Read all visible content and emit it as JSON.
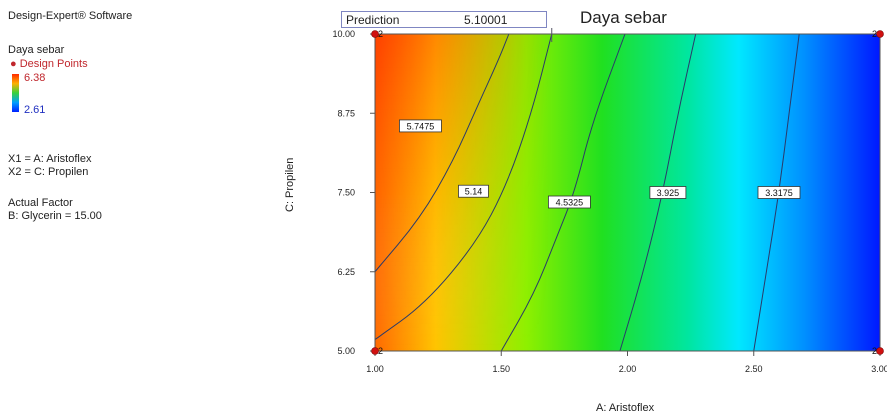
{
  "header": {
    "software": "Design-Expert® Software"
  },
  "response": {
    "name": "Daya sebar",
    "design_points_label": "Design Points",
    "high": "6.38",
    "low": "2.61"
  },
  "factors": {
    "x1": "X1 = A: Aristoflex",
    "x2": "X2 = C: Propilen"
  },
  "actual_factor": {
    "heading": "Actual Factor",
    "value": "B: Glycerin = 15.00"
  },
  "prediction": {
    "label": "Prediction",
    "value": "5.10001"
  },
  "colors": {
    "high": "#ff2a00",
    "mid": "#38d23c",
    "low": "#0020ff",
    "contour": "#2a3a6a"
  },
  "chart_data": {
    "type": "contour",
    "title": "Daya sebar",
    "xlabel": "A: Aristoflex",
    "ylabel": "C: Propilen",
    "xlim": [
      1.0,
      3.0
    ],
    "ylim": [
      5.0,
      10.0
    ],
    "x_ticks": [
      "1.00",
      "1.50",
      "2.00",
      "2.50",
      "3.00"
    ],
    "y_ticks": [
      "5.00",
      "6.25",
      "7.50",
      "8.75",
      "10.00"
    ],
    "color_range": [
      2.61,
      6.38
    ],
    "contours": [
      {
        "label": "5.7475",
        "points": [
          [
            1.0,
            6.25
          ],
          [
            1.18,
            7.1
          ],
          [
            1.31,
            8.0
          ],
          [
            1.41,
            8.9
          ],
          [
            1.49,
            9.6
          ],
          [
            1.53,
            10.0
          ]
        ]
      },
      {
        "label": "5.14",
        "points": [
          [
            1.0,
            5.18
          ],
          [
            1.2,
            5.75
          ],
          [
            1.4,
            6.7
          ],
          [
            1.52,
            7.6
          ],
          [
            1.62,
            8.75
          ],
          [
            1.7,
            10.0
          ]
        ]
      },
      {
        "label": "4.5325",
        "points": [
          [
            1.5,
            5.0
          ],
          [
            1.63,
            5.9
          ],
          [
            1.72,
            6.8
          ],
          [
            1.79,
            7.5
          ],
          [
            1.86,
            8.6
          ],
          [
            1.99,
            10.0
          ]
        ]
      },
      {
        "label": "3.925",
        "points": [
          [
            1.97,
            5.0
          ],
          [
            2.06,
            6.2
          ],
          [
            2.14,
            7.5
          ],
          [
            2.2,
            8.75
          ],
          [
            2.27,
            10.0
          ]
        ]
      },
      {
        "label": "3.3175",
        "points": [
          [
            2.5,
            5.0
          ],
          [
            2.55,
            6.25
          ],
          [
            2.6,
            7.5
          ],
          [
            2.64,
            8.75
          ],
          [
            2.68,
            10.0
          ]
        ]
      }
    ],
    "label_positions": [
      [
        1.18,
        8.55
      ],
      [
        1.39,
        7.52
      ],
      [
        1.77,
        7.35
      ],
      [
        2.16,
        7.5
      ],
      [
        2.6,
        7.5
      ]
    ],
    "design_points": [
      {
        "x": 1.0,
        "y": 10.0,
        "label": "2"
      },
      {
        "x": 3.0,
        "y": 10.0,
        "label": "2"
      },
      {
        "x": 1.0,
        "y": 5.0,
        "label": "2"
      },
      {
        "x": 3.0,
        "y": 5.0,
        "label": "2"
      }
    ]
  }
}
